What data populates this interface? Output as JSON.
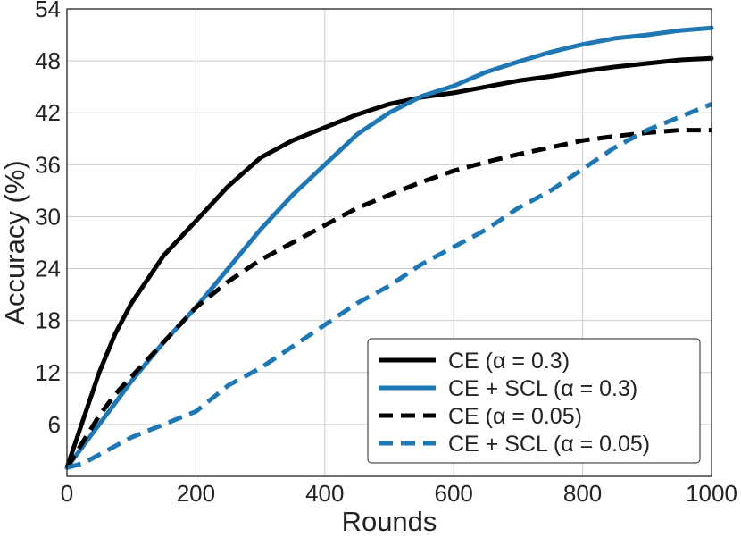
{
  "chart_data": {
    "type": "line",
    "xlabel": "Rounds",
    "ylabel": "Accuracy (%)",
    "xlim": [
      0,
      1000
    ],
    "ylim": [
      0,
      54
    ],
    "xticks": [
      "0",
      "200",
      "400",
      "600",
      "800",
      "1000"
    ],
    "yticks": [
      "6",
      "12",
      "18",
      "24",
      "30",
      "36",
      "42",
      "48",
      "54"
    ],
    "grid": true,
    "legend_position": "bottom-right",
    "series": [
      {
        "name": "CE (α = 0.3)",
        "color": "#000000",
        "dash": "solid",
        "x": [
          0,
          25,
          50,
          75,
          100,
          150,
          200,
          250,
          300,
          350,
          400,
          450,
          500,
          550,
          600,
          650,
          700,
          750,
          800,
          850,
          900,
          950,
          1000
        ],
        "y": [
          1,
          6.5,
          12,
          16.5,
          20,
          25.5,
          29.5,
          33.5,
          36.8,
          38.8,
          40.3,
          41.8,
          43,
          43.8,
          44.3,
          45,
          45.7,
          46.2,
          46.8,
          47.3,
          47.7,
          48.1,
          48.3
        ]
      },
      {
        "name": "CE + SCL (α = 0.3)",
        "color": "#1f77b4",
        "dash": "solid",
        "x": [
          0,
          25,
          50,
          75,
          100,
          150,
          200,
          250,
          300,
          350,
          400,
          450,
          500,
          550,
          600,
          650,
          700,
          750,
          800,
          850,
          900,
          950,
          1000
        ],
        "y": [
          1,
          3.5,
          6,
          8.5,
          11,
          15.5,
          19.5,
          24,
          28.5,
          32.5,
          36,
          39.5,
          42,
          43.9,
          45.1,
          46.7,
          47.9,
          49,
          49.9,
          50.6,
          51,
          51.5,
          51.8
        ]
      },
      {
        "name": "CE (α = 0.05)",
        "color": "#000000",
        "dash": "dashed",
        "x": [
          0,
          25,
          50,
          75,
          100,
          150,
          200,
          250,
          300,
          350,
          400,
          450,
          500,
          550,
          600,
          650,
          700,
          750,
          800,
          850,
          900,
          950,
          1000
        ],
        "y": [
          1,
          4,
          7,
          9.5,
          11.5,
          15.5,
          19.5,
          22.5,
          25,
          27,
          29,
          31,
          32.5,
          34,
          35.3,
          36.3,
          37.2,
          38,
          38.8,
          39.3,
          39.7,
          40,
          40
        ]
      },
      {
        "name": "CE + SCL (α = 0.05)",
        "color": "#1f77b4",
        "dash": "dashed",
        "x": [
          0,
          25,
          50,
          75,
          100,
          150,
          200,
          250,
          300,
          350,
          400,
          450,
          500,
          550,
          600,
          650,
          700,
          750,
          800,
          850,
          900,
          950,
          1000
        ],
        "y": [
          1,
          1.5,
          2.5,
          3.5,
          4.5,
          6,
          7.5,
          10.5,
          12.5,
          15,
          17.5,
          20,
          22,
          24.5,
          26.5,
          28.5,
          31,
          33,
          35.5,
          38,
          40,
          41.5,
          43
        ]
      }
    ]
  }
}
